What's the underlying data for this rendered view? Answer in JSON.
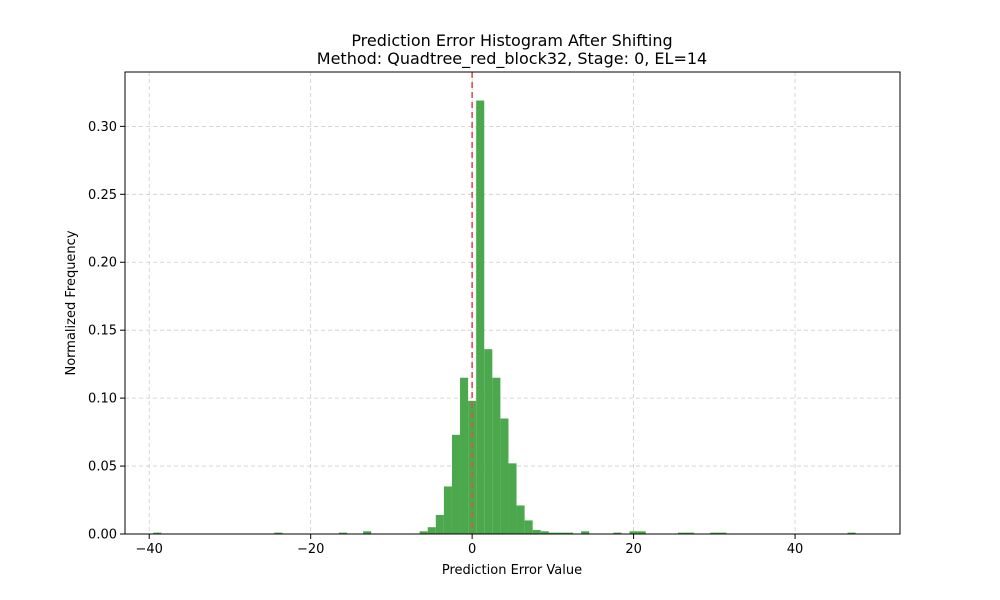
{
  "chart_data": {
    "type": "bar",
    "title": "Prediction Error Histogram After Shifting",
    "subtitle": "Method: Quadtree_red_block32, Stage: 0, EL=14",
    "xlabel": "Prediction Error Value",
    "ylabel": "Normalized Frequency",
    "xlim": [
      -43,
      53
    ],
    "ylim": [
      0,
      0.34
    ],
    "xticks": [
      -40,
      -20,
      0,
      20,
      40
    ],
    "xtick_labels": [
      "−40",
      "−20",
      "0",
      "20",
      "40"
    ],
    "yticks": [
      0.0,
      0.05,
      0.1,
      0.15,
      0.2,
      0.25,
      0.3
    ],
    "ytick_labels": [
      "0.00",
      "0.05",
      "0.10",
      "0.15",
      "0.20",
      "0.25",
      "0.30"
    ],
    "grid": true,
    "bar_color": "#4ca84c",
    "bin_width": 1,
    "bins": [
      {
        "x": -39,
        "value": 0.001
      },
      {
        "x": -24,
        "value": 0.001
      },
      {
        "x": -16,
        "value": 0.001
      },
      {
        "x": -13,
        "value": 0.002
      },
      {
        "x": -6,
        "value": 0.002
      },
      {
        "x": -5,
        "value": 0.005
      },
      {
        "x": -4,
        "value": 0.014
      },
      {
        "x": -3,
        "value": 0.035
      },
      {
        "x": -2,
        "value": 0.073
      },
      {
        "x": -1,
        "value": 0.115
      },
      {
        "x": 0,
        "value": 0.098
      },
      {
        "x": 1,
        "value": 0.319
      },
      {
        "x": 2,
        "value": 0.136
      },
      {
        "x": 3,
        "value": 0.115
      },
      {
        "x": 4,
        "value": 0.085
      },
      {
        "x": 5,
        "value": 0.052
      },
      {
        "x": 6,
        "value": 0.021
      },
      {
        "x": 7,
        "value": 0.01
      },
      {
        "x": 8,
        "value": 0.003
      },
      {
        "x": 9,
        "value": 0.002
      },
      {
        "x": 10,
        "value": 0.001
      },
      {
        "x": 11,
        "value": 0.001
      },
      {
        "x": 12,
        "value": 0.001
      },
      {
        "x": 14,
        "value": 0.002
      },
      {
        "x": 18,
        "value": 0.001
      },
      {
        "x": 20,
        "value": 0.002
      },
      {
        "x": 21,
        "value": 0.002
      },
      {
        "x": 26,
        "value": 0.001
      },
      {
        "x": 27,
        "value": 0.001
      },
      {
        "x": 30,
        "value": 0.001
      },
      {
        "x": 31,
        "value": 0.001
      },
      {
        "x": 47,
        "value": 0.001
      }
    ],
    "reference_line": {
      "x": 0,
      "color": "#d9534f",
      "style": "dashed"
    }
  }
}
